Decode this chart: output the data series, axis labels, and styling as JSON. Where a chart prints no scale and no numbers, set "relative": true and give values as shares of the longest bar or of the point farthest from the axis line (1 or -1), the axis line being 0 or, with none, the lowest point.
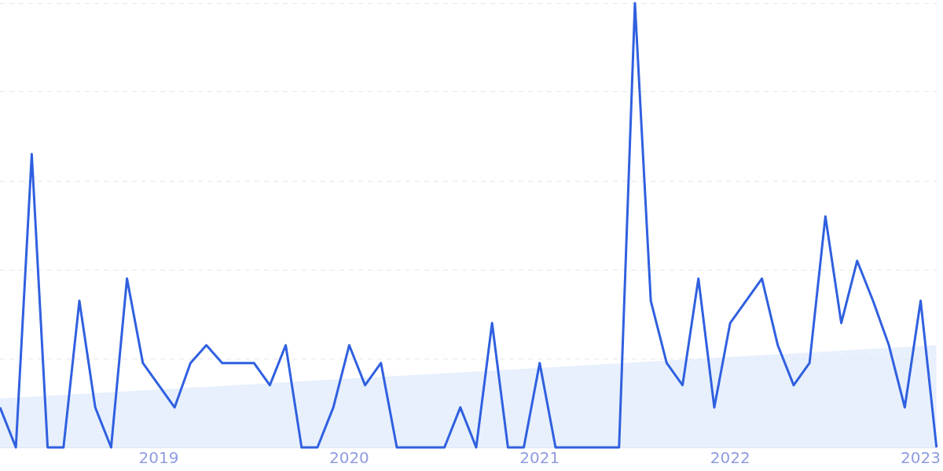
{
  "chart_data": {
    "type": "line",
    "relative": true,
    "grid": "y",
    "legend": false,
    "marker": "none",
    "line_style": "solid",
    "xlim": [
      "2018-03",
      "2023-02"
    ],
    "xticks": [
      "2019",
      "2020",
      "2021",
      "2022",
      "2023"
    ],
    "series": [
      {
        "type": "area",
        "color": "#dce9fb",
        "x": [
          "2018-03",
          "2023-02"
        ],
        "values": [
          0.11,
          0.23
        ]
      },
      {
        "color": "#3060e0",
        "x": [
          "2018-03",
          "2018-04",
          "2018-05",
          "2018-06",
          "2018-07",
          "2018-08",
          "2018-09",
          "2018-10",
          "2018-11",
          "2018-12",
          "2019-01",
          "2019-02",
          "2019-03",
          "2019-04",
          "2019-05",
          "2019-06",
          "2019-07",
          "2019-08",
          "2019-09",
          "2019-10",
          "2019-11",
          "2019-12",
          "2020-01",
          "2020-02",
          "2020-03",
          "2020-04",
          "2020-05",
          "2020-06",
          "2020-07",
          "2020-08",
          "2020-09",
          "2020-10",
          "2020-11",
          "2020-12",
          "2021-01",
          "2021-02",
          "2021-03",
          "2021-04",
          "2021-05",
          "2021-06",
          "2021-07",
          "2021-08",
          "2021-09",
          "2021-10",
          "2021-11",
          "2021-12",
          "2022-01",
          "2022-02",
          "2022-03",
          "2022-04",
          "2022-05",
          "2022-06",
          "2022-07",
          "2022-08",
          "2022-09",
          "2022-10",
          "2022-11",
          "2022-12",
          "2023-01",
          "2023-02"
        ],
        "values": [
          0.09,
          0,
          0.66,
          0,
          0,
          0.33,
          0.09,
          0,
          0.38,
          0.19,
          0.14,
          0.09,
          0.19,
          0.23,
          0.19,
          0.19,
          0.19,
          0.14,
          0.23,
          0,
          0,
          0.09,
          0.23,
          0.14,
          0.19,
          0,
          0,
          0,
          0,
          0.09,
          0,
          0.28,
          0,
          0,
          0.19,
          0,
          0,
          0,
          0,
          0,
          1,
          0.33,
          0.19,
          0.14,
          0.38,
          0.09,
          0.28,
          0.33,
          0.38,
          0.23,
          0.14,
          0.19,
          0.52,
          0.28,
          0.42,
          0.33,
          0.23,
          0.09,
          0.33,
          0
        ]
      }
    ]
  }
}
